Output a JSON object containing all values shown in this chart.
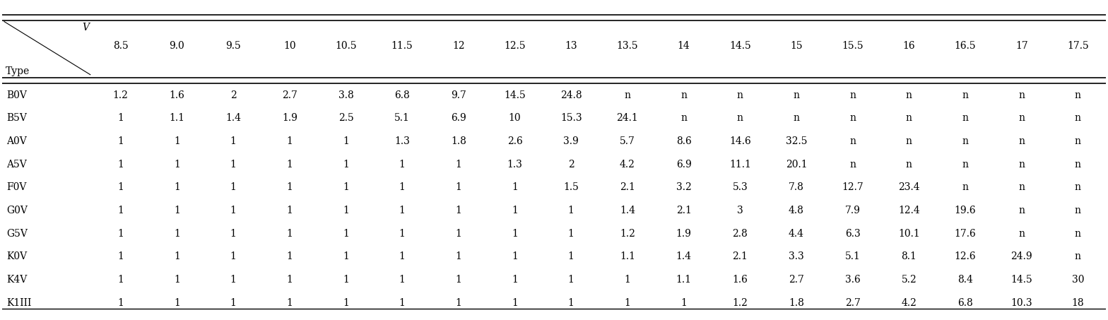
{
  "col_headers": [
    "8.5",
    "9.0",
    "9.5",
    "10",
    "10.5",
    "11.5",
    "12",
    "12.5",
    "13",
    "13.5",
    "14",
    "14.5",
    "15",
    "15.5",
    "16",
    "16.5",
    "17",
    "17.5"
  ],
  "row_headers": [
    "B0V",
    "B5V",
    "A0V",
    "A5V",
    "F0V",
    "G0V",
    "G5V",
    "K0V",
    "K4V",
    "K1III"
  ],
  "table_data": [
    [
      "1.2",
      "1.6",
      "2",
      "2.7",
      "3.8",
      "6.8",
      "9.7",
      "14.5",
      "24.8",
      "n",
      "n",
      "n",
      "n",
      "n",
      "n",
      "n",
      "n",
      "n"
    ],
    [
      "1",
      "1.1",
      "1.4",
      "1.9",
      "2.5",
      "5.1",
      "6.9",
      "10",
      "15.3",
      "24.1",
      "n",
      "n",
      "n",
      "n",
      "n",
      "n",
      "n",
      "n"
    ],
    [
      "1",
      "1",
      "1",
      "1",
      "1",
      "1.3",
      "1.8",
      "2.6",
      "3.9",
      "5.7",
      "8.6",
      "14.6",
      "32.5",
      "n",
      "n",
      "n",
      "n",
      "n"
    ],
    [
      "1",
      "1",
      "1",
      "1",
      "1",
      "1",
      "1",
      "1.3",
      "2",
      "4.2",
      "6.9",
      "11.1",
      "20.1",
      "n",
      "n",
      "n",
      "n",
      "n"
    ],
    [
      "1",
      "1",
      "1",
      "1",
      "1",
      "1",
      "1",
      "1",
      "1.5",
      "2.1",
      "3.2",
      "5.3",
      "7.8",
      "12.7",
      "23.4",
      "n",
      "n",
      "n"
    ],
    [
      "1",
      "1",
      "1",
      "1",
      "1",
      "1",
      "1",
      "1",
      "1",
      "1.4",
      "2.1",
      "3",
      "4.8",
      "7.9",
      "12.4",
      "19.6",
      "n",
      "n"
    ],
    [
      "1",
      "1",
      "1",
      "1",
      "1",
      "1",
      "1",
      "1",
      "1",
      "1.2",
      "1.9",
      "2.8",
      "4.4",
      "6.3",
      "10.1",
      "17.6",
      "n",
      "n"
    ],
    [
      "1",
      "1",
      "1",
      "1",
      "1",
      "1",
      "1",
      "1",
      "1",
      "1.1",
      "1.4",
      "2.1",
      "3.3",
      "5.1",
      "8.1",
      "12.6",
      "24.9",
      "n"
    ],
    [
      "1",
      "1",
      "1",
      "1",
      "1",
      "1",
      "1",
      "1",
      "1",
      "1",
      "1.1",
      "1.6",
      "2.7",
      "3.6",
      "5.2",
      "8.4",
      "14.5",
      "30"
    ],
    [
      "1",
      "1",
      "1",
      "1",
      "1",
      "1",
      "1",
      "1",
      "1",
      "1",
      "1",
      "1.2",
      "1.8",
      "2.7",
      "4.2",
      "6.8",
      "10.3",
      "18"
    ]
  ],
  "top_left_label_v": "V",
  "top_left_label_type": "Type",
  "bg_color": "#ffffff",
  "text_color": "#000000",
  "line_color": "#000000",
  "font_size": 10,
  "header_font_size": 10
}
